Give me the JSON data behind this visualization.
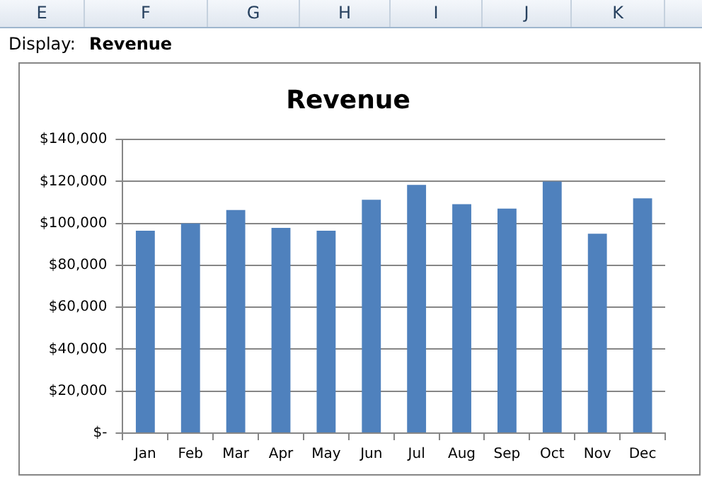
{
  "chart_data": {
    "type": "bar",
    "title": "Revenue",
    "categories": [
      "Jan",
      "Feb",
      "Mar",
      "Apr",
      "May",
      "Jun",
      "Jul",
      "Aug",
      "Sep",
      "Oct",
      "Nov",
      "Dec"
    ],
    "values": [
      96500,
      100000,
      106400,
      97900,
      96500,
      111300,
      118400,
      109200,
      107100,
      120000,
      95100,
      112000
    ],
    "color": "#4f81bd",
    "ylim": [
      0,
      140000
    ],
    "yticks": [
      {
        "value": 0,
        "label": "$-"
      },
      {
        "value": 20000,
        "label": "$20,000"
      },
      {
        "value": 40000,
        "label": "$40,000"
      },
      {
        "value": 60000,
        "label": "$60,000"
      },
      {
        "value": 80000,
        "label": "$80,000"
      },
      {
        "value": 100000,
        "label": "$100,000"
      },
      {
        "value": 120000,
        "label": "$120,000"
      },
      {
        "value": 140000,
        "label": "$140,000"
      }
    ],
    "grid": "y",
    "annotations": [
      "E",
      "F",
      "G",
      "H",
      "I",
      "J",
      "K",
      "Display:",
      "Revenue"
    ]
  }
}
